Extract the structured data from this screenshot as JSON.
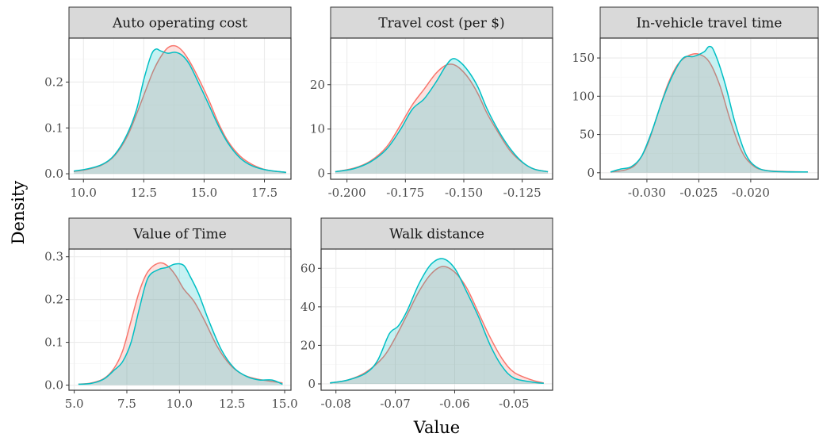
{
  "colors": {
    "series_a": "#F8766D",
    "series_b": "#00BFC4"
  },
  "axis_titles": {
    "x": "Value",
    "y": "Density"
  },
  "chart_data": [
    {
      "type": "area",
      "title": "Auto operating cost",
      "xlim": [
        9.4,
        18.6
      ],
      "ylim": [
        -0.012,
        0.296
      ],
      "xticks": [
        10.0,
        12.5,
        15.0,
        17.5
      ],
      "xtick_labels": [
        "10.0",
        "12.5",
        "15.0",
        "17.5"
      ],
      "yticks": [
        0.0,
        0.1,
        0.2
      ],
      "ytick_labels": [
        "0.0",
        "0.1",
        "0.2"
      ],
      "series": [
        {
          "color": "#F8766D",
          "points": [
            [
              9.6,
              0.005
            ],
            [
              10.2,
              0.01
            ],
            [
              10.8,
              0.02
            ],
            [
              11.3,
              0.04
            ],
            [
              11.8,
              0.08
            ],
            [
              12.2,
              0.13
            ],
            [
              12.6,
              0.185
            ],
            [
              12.9,
              0.225
            ],
            [
              13.2,
              0.255
            ],
            [
              13.5,
              0.275
            ],
            [
              13.8,
              0.279
            ],
            [
              14.1,
              0.268
            ],
            [
              14.4,
              0.245
            ],
            [
              14.8,
              0.205
            ],
            [
              15.2,
              0.16
            ],
            [
              15.6,
              0.11
            ],
            [
              16.0,
              0.07
            ],
            [
              16.5,
              0.038
            ],
            [
              17.0,
              0.02
            ],
            [
              17.6,
              0.008
            ],
            [
              18.4,
              0.003
            ]
          ]
        },
        {
          "color": "#00BFC4",
          "points": [
            [
              9.6,
              0.006
            ],
            [
              10.2,
              0.011
            ],
            [
              10.8,
              0.021
            ],
            [
              11.3,
              0.042
            ],
            [
              11.8,
              0.085
            ],
            [
              12.2,
              0.14
            ],
            [
              12.5,
              0.205
            ],
            [
              12.8,
              0.258
            ],
            [
              13.0,
              0.272
            ],
            [
              13.2,
              0.268
            ],
            [
              13.5,
              0.263
            ],
            [
              13.8,
              0.265
            ],
            [
              14.1,
              0.258
            ],
            [
              14.4,
              0.238
            ],
            [
              14.8,
              0.195
            ],
            [
              15.2,
              0.15
            ],
            [
              15.6,
              0.104
            ],
            [
              16.0,
              0.066
            ],
            [
              16.5,
              0.034
            ],
            [
              17.0,
              0.017
            ],
            [
              17.6,
              0.008
            ],
            [
              18.4,
              0.003
            ]
          ]
        }
      ]
    },
    {
      "type": "area",
      "title": "Travel cost (per $)",
      "xlim": [
        -0.207,
        -0.112
      ],
      "ylim": [
        -1.3,
        30.5
      ],
      "xticks": [
        -0.2,
        -0.175,
        -0.15,
        -0.125
      ],
      "xtick_labels": [
        "-0.200",
        "-0.175",
        "-0.150",
        "-0.125"
      ],
      "yticks": [
        0,
        10,
        20
      ],
      "ytick_labels": [
        "0",
        "10",
        "20"
      ],
      "series": [
        {
          "color": "#F8766D",
          "points": [
            [
              -0.205,
              0.4
            ],
            [
              -0.197,
              1.2
            ],
            [
              -0.19,
              2.8
            ],
            [
              -0.183,
              6.0
            ],
            [
              -0.177,
              11.0
            ],
            [
              -0.172,
              15.5
            ],
            [
              -0.167,
              19.0
            ],
            [
              -0.162,
              22.5
            ],
            [
              -0.158,
              24.3
            ],
            [
              -0.155,
              24.6
            ],
            [
              -0.152,
              23.8
            ],
            [
              -0.148,
              21.5
            ],
            [
              -0.144,
              18.0
            ],
            [
              -0.14,
              13.5
            ],
            [
              -0.135,
              9.0
            ],
            [
              -0.13,
              5.0
            ],
            [
              -0.125,
              2.5
            ],
            [
              -0.12,
              1.0
            ],
            [
              -0.114,
              0.4
            ]
          ]
        },
        {
          "color": "#00BFC4",
          "points": [
            [
              -0.205,
              0.4
            ],
            [
              -0.197,
              1.1
            ],
            [
              -0.19,
              2.6
            ],
            [
              -0.183,
              5.5
            ],
            [
              -0.177,
              10.0
            ],
            [
              -0.172,
              14.5
            ],
            [
              -0.167,
              16.8
            ],
            [
              -0.162,
              20.5
            ],
            [
              -0.158,
              24.0
            ],
            [
              -0.155,
              25.8
            ],
            [
              -0.152,
              25.3
            ],
            [
              -0.148,
              23.0
            ],
            [
              -0.144,
              19.5
            ],
            [
              -0.14,
              14.5
            ],
            [
              -0.135,
              9.5
            ],
            [
              -0.13,
              5.5
            ],
            [
              -0.125,
              2.6
            ],
            [
              -0.12,
              1.0
            ],
            [
              -0.114,
              0.4
            ]
          ]
        }
      ]
    },
    {
      "type": "area",
      "title": "In-vehicle travel time",
      "xlim": [
        -0.0345,
        -0.0135
      ],
      "ylim": [
        -8.5,
        176
      ],
      "xticks": [
        -0.03,
        -0.025,
        -0.02
      ],
      "xtick_labels": [
        "-0.030",
        "-0.025",
        "-0.020"
      ],
      "yticks": [
        0,
        50,
        100,
        150
      ],
      "ytick_labels": [
        "0",
        "50",
        "100",
        "150"
      ],
      "series": [
        {
          "color": "#F8766D",
          "points": [
            [
              -0.0335,
              1
            ],
            [
              -0.032,
              4
            ],
            [
              -0.031,
              12
            ],
            [
              -0.03,
              35
            ],
            [
              -0.029,
              75
            ],
            [
              -0.028,
              115
            ],
            [
              -0.027,
              142
            ],
            [
              -0.026,
              153
            ],
            [
              -0.025,
              155
            ],
            [
              -0.024,
              145
            ],
            [
              -0.023,
              115
            ],
            [
              -0.022,
              70
            ],
            [
              -0.021,
              32
            ],
            [
              -0.02,
              12
            ],
            [
              -0.0185,
              3
            ],
            [
              -0.0145,
              1
            ]
          ]
        },
        {
          "color": "#00BFC4",
          "points": [
            [
              -0.0335,
              1
            ],
            [
              -0.0325,
              5
            ],
            [
              -0.0315,
              8
            ],
            [
              -0.0305,
              22
            ],
            [
              -0.0295,
              55
            ],
            [
              -0.0285,
              95
            ],
            [
              -0.0275,
              128
            ],
            [
              -0.0265,
              150
            ],
            [
              -0.0255,
              152
            ],
            [
              -0.0245,
              158
            ],
            [
              -0.024,
              165
            ],
            [
              -0.0235,
              158
            ],
            [
              -0.0225,
              118
            ],
            [
              -0.0215,
              65
            ],
            [
              -0.0205,
              25
            ],
            [
              -0.0195,
              8
            ],
            [
              -0.018,
              2
            ],
            [
              -0.0145,
              1
            ]
          ]
        }
      ]
    },
    {
      "type": "area",
      "title": "Value of Time",
      "xlim": [
        4.75,
        15.3
      ],
      "ylim": [
        -0.012,
        0.318
      ],
      "xticks": [
        5.0,
        7.5,
        10.0,
        12.5,
        15.0
      ],
      "xtick_labels": [
        "5.0",
        "7.5",
        "10.0",
        "12.5",
        "15.0"
      ],
      "yticks": [
        0.0,
        0.1,
        0.2,
        0.3
      ],
      "ytick_labels": [
        "0.0",
        "0.1",
        "0.2",
        "0.3"
      ],
      "series": [
        {
          "color": "#F8766D",
          "points": [
            [
              5.2,
              0.002
            ],
            [
              5.8,
              0.005
            ],
            [
              6.4,
              0.015
            ],
            [
              6.9,
              0.04
            ],
            [
              7.3,
              0.08
            ],
            [
              7.7,
              0.15
            ],
            [
              8.1,
              0.22
            ],
            [
              8.5,
              0.265
            ],
            [
              9.0,
              0.285
            ],
            [
              9.4,
              0.28
            ],
            [
              9.8,
              0.258
            ],
            [
              10.2,
              0.225
            ],
            [
              10.7,
              0.195
            ],
            [
              11.2,
              0.15
            ],
            [
              11.8,
              0.09
            ],
            [
              12.4,
              0.048
            ],
            [
              13.0,
              0.025
            ],
            [
              13.6,
              0.015
            ],
            [
              14.2,
              0.01
            ],
            [
              14.9,
              0.005
            ]
          ]
        },
        {
          "color": "#00BFC4",
          "points": [
            [
              5.2,
              0.002
            ],
            [
              5.8,
              0.004
            ],
            [
              6.4,
              0.014
            ],
            [
              6.9,
              0.035
            ],
            [
              7.3,
              0.055
            ],
            [
              7.7,
              0.1
            ],
            [
              8.1,
              0.18
            ],
            [
              8.5,
              0.25
            ],
            [
              9.0,
              0.27
            ],
            [
              9.4,
              0.275
            ],
            [
              9.8,
              0.283
            ],
            [
              10.2,
              0.28
            ],
            [
              10.5,
              0.255
            ],
            [
              10.9,
              0.215
            ],
            [
              11.4,
              0.15
            ],
            [
              12.0,
              0.082
            ],
            [
              12.6,
              0.04
            ],
            [
              13.2,
              0.02
            ],
            [
              13.8,
              0.012
            ],
            [
              14.4,
              0.012
            ],
            [
              14.9,
              0.002
            ]
          ]
        }
      ]
    },
    {
      "type": "area",
      "title": "Walk distance",
      "xlim": [
        -0.0825,
        -0.0435
      ],
      "ylim": [
        -3.3,
        70
      ],
      "xticks": [
        -0.08,
        -0.07,
        -0.06,
        -0.05
      ],
      "xtick_labels": [
        "-0.08",
        "-0.07",
        "-0.06",
        "-0.05"
      ],
      "yticks": [
        0,
        20,
        40,
        60
      ],
      "ytick_labels": [
        "0",
        "20",
        "40",
        "60"
      ],
      "series": [
        {
          "color": "#F8766D",
          "points": [
            [
              -0.081,
              0.5
            ],
            [
              -0.078,
              2.0
            ],
            [
              -0.075,
              6.0
            ],
            [
              -0.072,
              14.0
            ],
            [
              -0.07,
              24.0
            ],
            [
              -0.068,
              36.0
            ],
            [
              -0.066,
              48.0
            ],
            [
              -0.064,
              57.0
            ],
            [
              -0.062,
              61.0
            ],
            [
              -0.06,
              58.0
            ],
            [
              -0.058,
              50.0
            ],
            [
              -0.056,
              37.0
            ],
            [
              -0.054,
              24.0
            ],
            [
              -0.052,
              13.0
            ],
            [
              -0.05,
              6.0
            ],
            [
              -0.047,
              2.0
            ],
            [
              -0.045,
              0.5
            ]
          ]
        },
        {
          "color": "#00BFC4",
          "points": [
            [
              -0.081,
              0.5
            ],
            [
              -0.078,
              2.0
            ],
            [
              -0.075,
              5.5
            ],
            [
              -0.073,
              12.0
            ],
            [
              -0.071,
              26.0
            ],
            [
              -0.0695,
              30.0
            ],
            [
              -0.068,
              38.0
            ],
            [
              -0.066,
              52.0
            ],
            [
              -0.064,
              62.0
            ],
            [
              -0.062,
              65.0
            ],
            [
              -0.06,
              60.0
            ],
            [
              -0.058,
              48.0
            ],
            [
              -0.056,
              35.0
            ],
            [
              -0.054,
              20.0
            ],
            [
              -0.052,
              9.0
            ],
            [
              -0.05,
              3.0
            ],
            [
              -0.047,
              1.0
            ],
            [
              -0.045,
              0.3
            ]
          ]
        }
      ]
    }
  ]
}
